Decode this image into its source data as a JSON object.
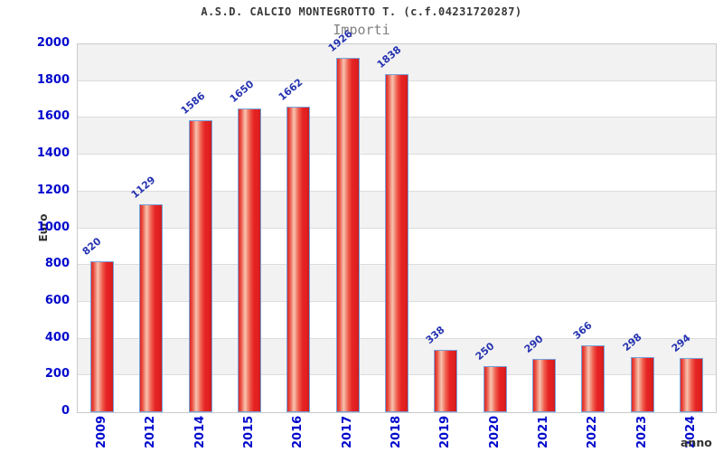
{
  "header": {
    "title": "A.S.D. CALCIO MONTEGROTTO T. (c.f.04231720287)",
    "subtitle": "Importi"
  },
  "chart_data": {
    "type": "bar",
    "title": "A.S.D. CALCIO MONTEGROTTO T. (c.f.04231720287)",
    "subtitle": "Importi",
    "xlabel": "anno",
    "ylabel": "Euro",
    "categories": [
      "2009",
      "2012",
      "2014",
      "2015",
      "2016",
      "2017",
      "2018",
      "2019",
      "2020",
      "2021",
      "2022",
      "2023",
      "2024"
    ],
    "values": [
      820,
      1129,
      1586,
      1650,
      1662,
      1926,
      1838,
      338,
      250,
      290,
      366,
      298,
      294
    ],
    "ylim": [
      0,
      2000
    ],
    "ytick_step": 200,
    "grid": "horizontal",
    "legend": "none",
    "band_pattern": "alternating"
  },
  "colors": {
    "bar_fill": "#e62424",
    "bar_highlight": "#f7c4b0",
    "bar_border": "#76a3dd",
    "tick_label": "#0008cc",
    "value_label": "#2633b0",
    "band_gray": "#f2f2f2",
    "gridline": "#dcdcdc",
    "frame": "#c9c9c9",
    "title_text": "#383838",
    "subtitle_text": "#828282",
    "axis_title_text": "#333333"
  }
}
